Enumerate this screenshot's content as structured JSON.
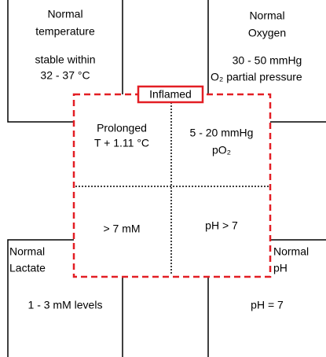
{
  "boxes": [
    {
      "title": [
        "Normal",
        "temperature"
      ],
      "text": [
        "stable within",
        "32 - 37 °C"
      ]
    },
    {
      "title": [
        "Normal",
        "Oxygen"
      ],
      "text": [
        "30 - 50 mmHg",
        "O₂ partial pressure"
      ]
    },
    {
      "title": [
        "Normal",
        "Lactate"
      ],
      "text": [
        "1 - 3 mM levels"
      ]
    },
    {
      "title": [
        "Normal",
        "pH"
      ],
      "text": [
        "pH = 7"
      ]
    }
  ],
  "inflamed": {
    "label": "Inflamed",
    "cells": [
      [
        "Prolonged",
        "T + 1.11 °C"
      ],
      [
        "5 - 20 mmHg",
        "pO₂"
      ],
      [
        "> 7 mM"
      ],
      [
        "pH > 7"
      ]
    ]
  }
}
